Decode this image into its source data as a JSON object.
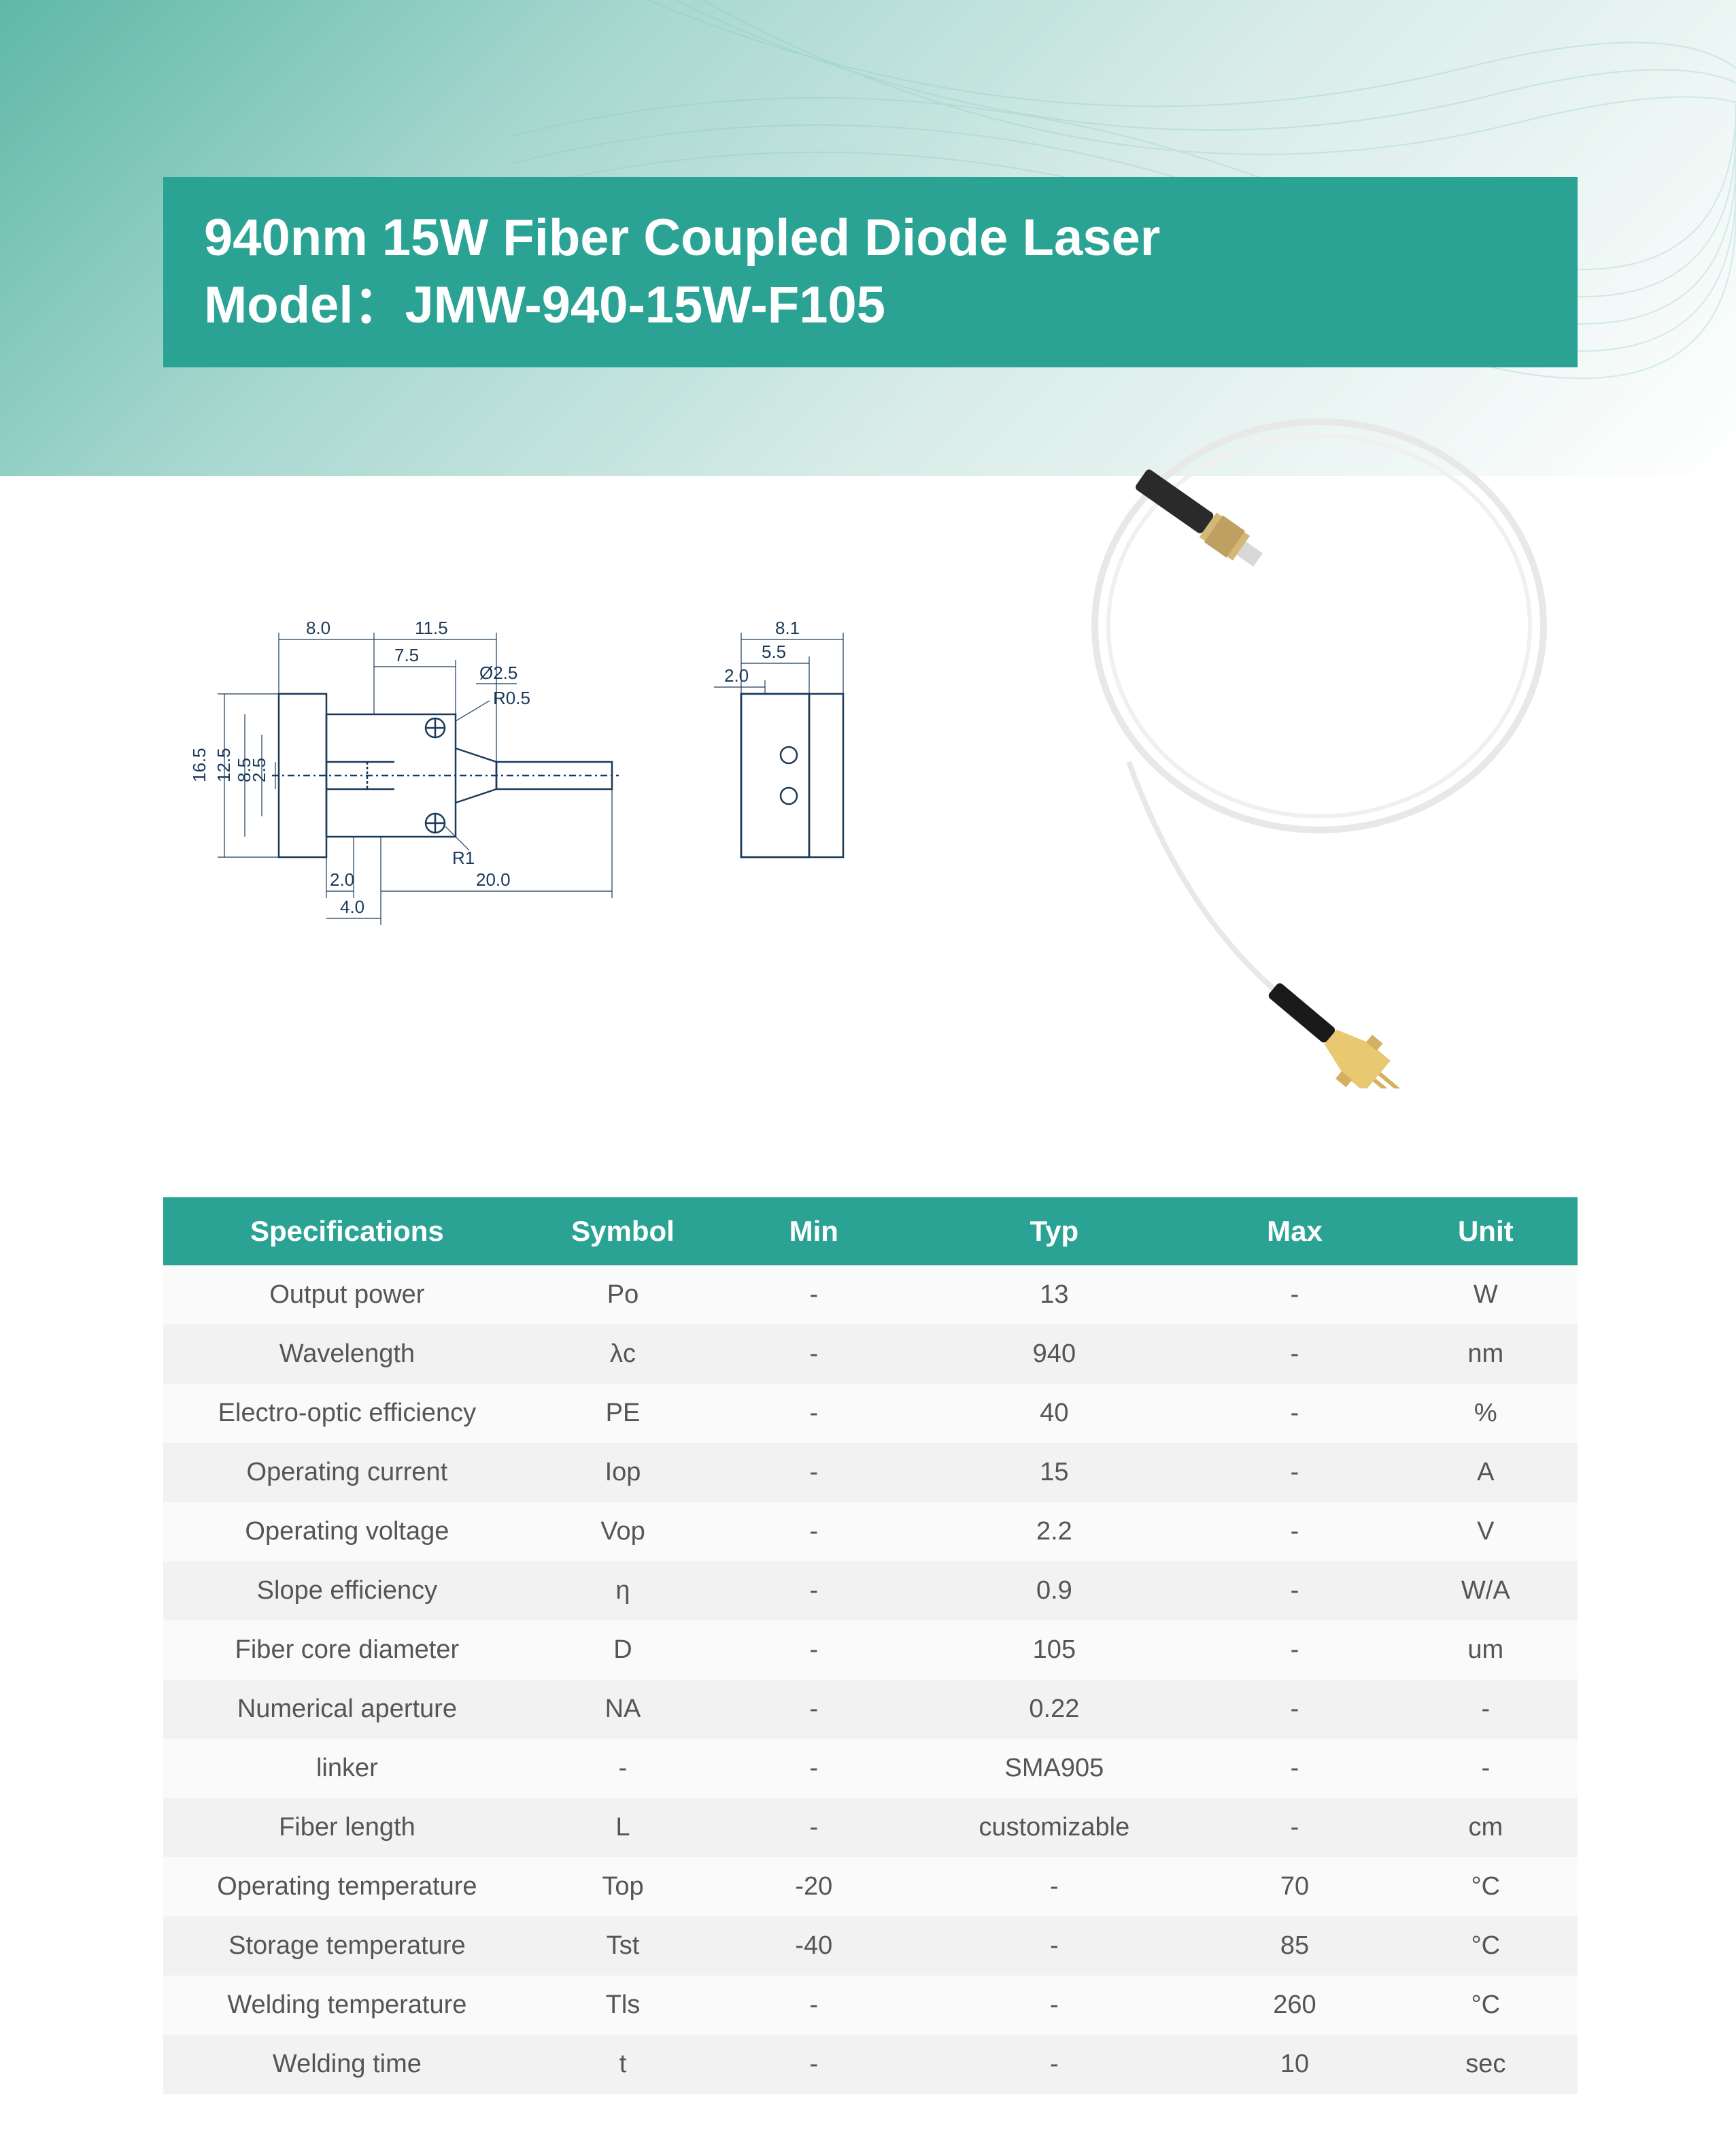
{
  "colors": {
    "banner_bg": "#2ba394",
    "banner_text": "#ffffff",
    "table_header_bg": "#2ba394",
    "table_header_text": "#ffffff",
    "table_row_odd": "#fafafa",
    "table_row_even": "#f2f2f2",
    "table_text": "#555555",
    "diagram_stroke": "#1a3a5a",
    "bg_gradient_start": "#5fb8a8",
    "bg_gradient_end": "#ffffff"
  },
  "title": {
    "line1": "940nm 15W Fiber Coupled Diode Laser",
    "line2": "Model：JMW-940-15W-F105"
  },
  "diagram": {
    "dimensions": {
      "d_8_0": "8.0",
      "d_11_5": "11.5",
      "d_7_5": "7.5",
      "d_phi_2_5": "Ø2.5",
      "d_r0_5": "R0.5",
      "d_16_5": "16.5",
      "d_12_5": "12.5",
      "d_8_5": "8.5",
      "d_2_5": "2.5",
      "d_r1": "R1",
      "d_2_0": "2.0",
      "d_4_0": "4.0",
      "d_20_0": "20.0",
      "side_8_1": "8.1",
      "side_5_5": "5.5",
      "side_2_0": "2.0"
    }
  },
  "table": {
    "headers": [
      "Specifications",
      "Symbol",
      "Min",
      "Typ",
      "Max",
      "Unit"
    ],
    "rows": [
      [
        "Output power",
        "Po",
        "-",
        "13",
        "-",
        "W"
      ],
      [
        "Wavelength",
        "λc",
        "-",
        "940",
        "-",
        "nm"
      ],
      [
        "Electro-optic efficiency",
        "PE",
        "-",
        "40",
        "-",
        "%"
      ],
      [
        "Operating current",
        "Iop",
        "-",
        "15",
        "-",
        "A"
      ],
      [
        "Operating voltage",
        "Vop",
        "-",
        "2.2",
        "-",
        "V"
      ],
      [
        "Slope efficiency",
        "η",
        "-",
        "0.9",
        "-",
        "W/A"
      ],
      [
        "Fiber core diameter",
        "D",
        "-",
        "105",
        "-",
        "um"
      ],
      [
        "Numerical aperture",
        "NA",
        "-",
        "0.22",
        "-",
        "-"
      ],
      [
        "linker",
        "-",
        "-",
        "SMA905",
        "-",
        "-"
      ],
      [
        "Fiber length",
        "L",
        "-",
        "customizable",
        "-",
        "cm"
      ],
      [
        "Operating temperature",
        "Top",
        "-20",
        "-",
        "70",
        "°C"
      ],
      [
        "Storage temperature",
        "Tst",
        "-40",
        "-",
        "85",
        "°C"
      ],
      [
        "Welding temperature",
        "Tls",
        "-",
        "-",
        "260",
        "°C"
      ],
      [
        "Welding time",
        "t",
        "-",
        "-",
        "10",
        "sec"
      ]
    ]
  }
}
